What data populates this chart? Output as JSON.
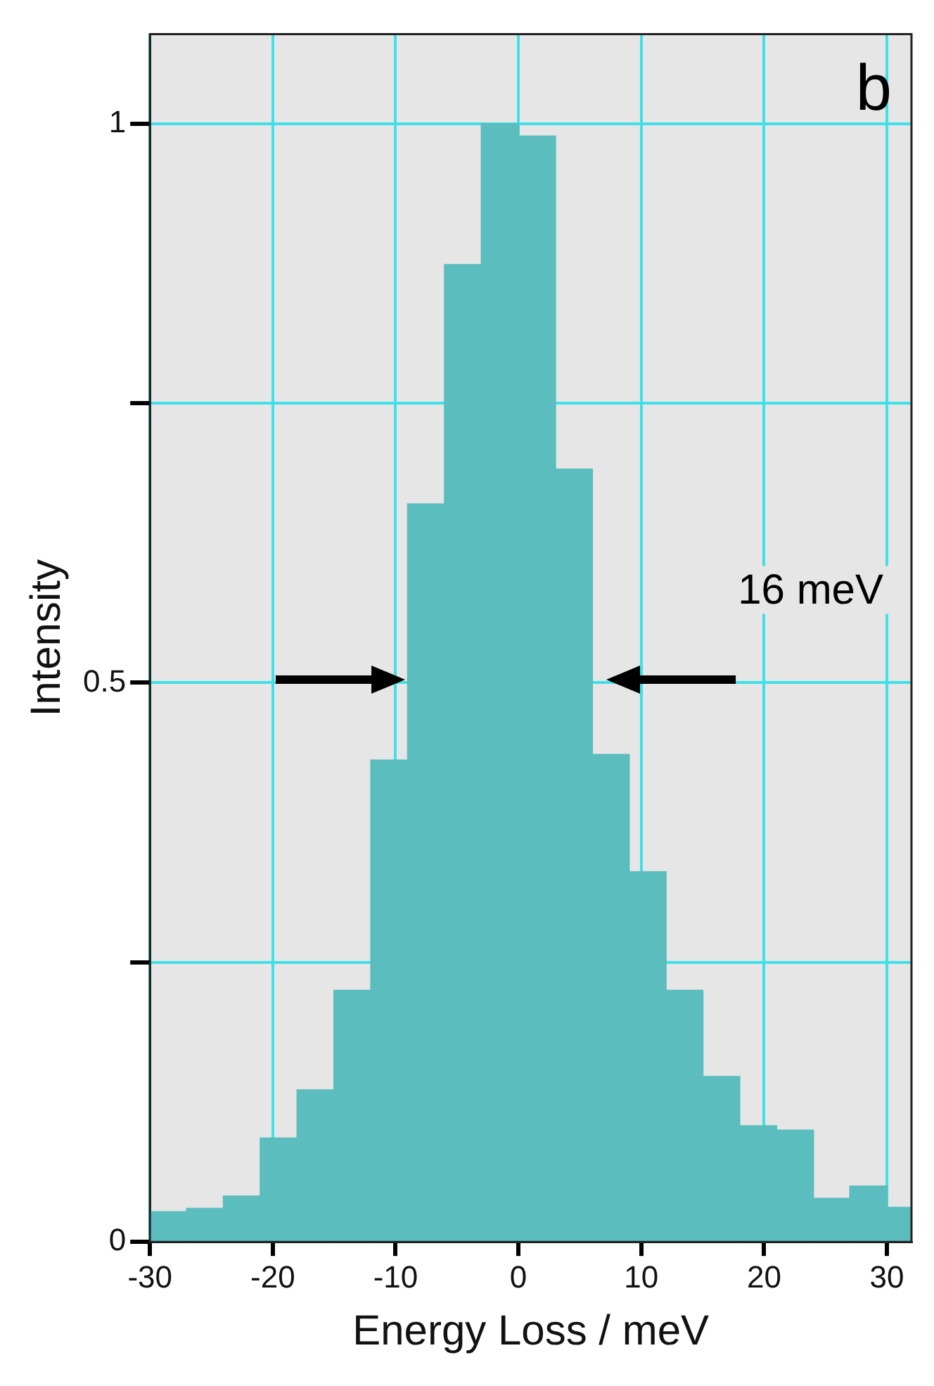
{
  "chart_data": {
    "type": "histogram",
    "xlabel": "Energy Loss / meV",
    "ylabel": "Intensity",
    "bins": [
      -30,
      -27,
      -24,
      -21,
      -18,
      -15,
      -12,
      -9,
      -6,
      -3,
      0,
      3,
      6,
      9,
      12,
      15,
      18,
      21,
      24,
      27,
      30,
      32
    ],
    "values": [
      0.027,
      0.03,
      0.041,
      0.093,
      0.136,
      0.225,
      0.431,
      0.66,
      0.874,
      1.0,
      0.989,
      0.691,
      0.436,
      0.331,
      0.225,
      0.148,
      0.104,
      0.1,
      0.039,
      0.05,
      0.031
    ],
    "color": "#5cbdbe",
    "xlim": [
      -30,
      32
    ],
    "xticks": [
      -30,
      -20,
      -10,
      0,
      10,
      20,
      30
    ],
    "ylim": [
      0,
      1.08
    ],
    "yticks": [
      0,
      {
        "value": 0.25,
        "label": null
      },
      {
        "value": 0.5,
        "label": "0.5"
      },
      {
        "value": 0.75,
        "label": null
      },
      1
    ],
    "grid": true,
    "legend": false,
    "annotations": [
      "b",
      "16 meV"
    ]
  }
}
